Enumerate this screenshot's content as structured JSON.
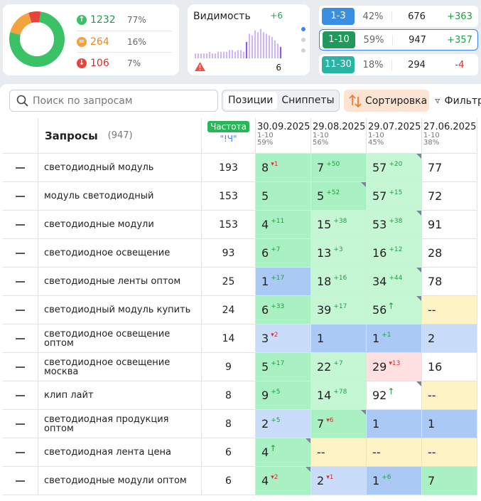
{
  "distribution": {
    "up": {
      "count": "1232",
      "pct": "77%",
      "color": "#3cc266"
    },
    "same": {
      "count": "264",
      "pct": "16%",
      "color": "#f4a23c"
    },
    "down": {
      "count": "106",
      "pct": "7%",
      "color": "#e8443b"
    }
  },
  "visibility": {
    "title": "Видимость",
    "delta": "+6",
    "warn_count": "6",
    "bar_levels": [
      0.15,
      0.15,
      0.15,
      0.15,
      0.15,
      0.2,
      0.15,
      0.15,
      0.2,
      0.2,
      0.2,
      0.2,
      0.25,
      0.25,
      0.2,
      0.25,
      0.25,
      0.2,
      0.5,
      0.75,
      0.7,
      0.85,
      0.8,
      0.9,
      0.8,
      0.75,
      0.7,
      0.65,
      0.55,
      0.45,
      0.35
    ]
  },
  "ranges": [
    {
      "badge": "1-3",
      "badge_color": "#3b8fe0",
      "pct": "42%",
      "count": "676",
      "delta": "+363",
      "delta_color": "#1f9e45"
    },
    {
      "badge": "1-10",
      "badge_color": "#22995a",
      "pct": "59%",
      "count": "947",
      "delta": "+357",
      "delta_color": "#1f9e45"
    },
    {
      "badge": "11-30",
      "badge_color": "#29b5a6",
      "pct": "18%",
      "count": "294",
      "delta": "-4",
      "delta_color": "#d92d2d"
    }
  ],
  "toolbar": {
    "search_placeholder": "Поиск по запросам",
    "tab_positions": "Позиции",
    "tab_snippets": "Сниппеты",
    "sort_label": "Сортировка",
    "filter_label": "Фильтры"
  },
  "table": {
    "queries_title": "Запросы",
    "queries_count": "(947)",
    "freq_badge": "Частота",
    "freq_sub": "\"!Ч\"",
    "dates": [
      {
        "date": "30.09.2025",
        "range": "1-10",
        "pct": "59%"
      },
      {
        "date": "29.08.2025",
        "range": "1-10",
        "pct": "56%"
      },
      {
        "date": "29.07.2025",
        "range": "1-10",
        "pct": "45%"
      },
      {
        "date": "27.06.2025",
        "range": "1-10",
        "pct": "38%"
      }
    ],
    "rows": [
      {
        "q": "светодиодный модуль",
        "f": "193",
        "cells": [
          {
            "v": "8",
            "c": "1",
            "d": "down",
            "bg": "#a9f0c2",
            "m": false
          },
          {
            "v": "7",
            "c": "50",
            "d": "up",
            "bg": "#a9f0c2",
            "m": false
          },
          {
            "v": "57",
            "c": "20",
            "d": "up",
            "bg": "#c6f7d4",
            "m": true
          },
          {
            "v": "77",
            "c": "",
            "d": "",
            "bg": "#ffffff",
            "m": false
          }
        ]
      },
      {
        "q": "модуль светодиодный",
        "f": "153",
        "cells": [
          {
            "v": "5",
            "c": "",
            "d": "",
            "bg": "#a9f0c2",
            "m": false
          },
          {
            "v": "5",
            "c": "52",
            "d": "up",
            "bg": "#a9f0c2",
            "m": true
          },
          {
            "v": "57",
            "c": "15",
            "d": "up",
            "bg": "#c6f7d4",
            "m": false
          },
          {
            "v": "72",
            "c": "",
            "d": "",
            "bg": "#ffffff",
            "m": false
          }
        ]
      },
      {
        "q": "светодиодные модули",
        "f": "153",
        "cells": [
          {
            "v": "4",
            "c": "11",
            "d": "up",
            "bg": "#a9f0c2",
            "m": false
          },
          {
            "v": "15",
            "c": "38",
            "d": "up",
            "bg": "#c6f7d4",
            "m": false
          },
          {
            "v": "53",
            "c": "38",
            "d": "up",
            "bg": "#c6f7d4",
            "m": true
          },
          {
            "v": "91",
            "c": "",
            "d": "",
            "bg": "#ffffff",
            "m": false
          }
        ]
      },
      {
        "q": "светодиодное освещение",
        "f": "93",
        "cells": [
          {
            "v": "6",
            "c": "7",
            "d": "up",
            "bg": "#a9f0c2",
            "m": false
          },
          {
            "v": "13",
            "c": "3",
            "d": "up",
            "bg": "#c6f7d4",
            "m": false
          },
          {
            "v": "16",
            "c": "12",
            "d": "up",
            "bg": "#c6f7d4",
            "m": false
          },
          {
            "v": "28",
            "c": "",
            "d": "",
            "bg": "#ffffff",
            "m": false
          }
        ]
      },
      {
        "q": "светодиодные ленты оптом",
        "f": "25",
        "cells": [
          {
            "v": "1",
            "c": "17",
            "d": "up",
            "bg": "#abc9f5",
            "m": false
          },
          {
            "v": "18",
            "c": "16",
            "d": "up",
            "bg": "#c6f7d4",
            "m": false
          },
          {
            "v": "34",
            "c": "44",
            "d": "up",
            "bg": "#c6f7d4",
            "m": true
          },
          {
            "v": "78",
            "c": "",
            "d": "",
            "bg": "#ffffff",
            "m": false
          }
        ]
      },
      {
        "q": "светодиодный модуль купить",
        "f": "24",
        "cells": [
          {
            "v": "6",
            "c": "33",
            "d": "up",
            "bg": "#a9f0c2",
            "m": false
          },
          {
            "v": "39",
            "c": "17",
            "d": "up",
            "bg": "#c6f7d4",
            "m": false
          },
          {
            "v": "56",
            "c": "↑",
            "d": "new",
            "bg": "#c6f7d4",
            "m": true
          },
          {
            "v": "--",
            "c": "",
            "d": "",
            "bg": "#fdf3c4",
            "m": false
          }
        ]
      },
      {
        "q": "светодиодное освещение оптом",
        "f": "14",
        "cells": [
          {
            "v": "3",
            "c": "2",
            "d": "down",
            "bg": "#c9dcfa",
            "m": false
          },
          {
            "v": "1",
            "c": "",
            "d": "",
            "bg": "#abc9f5",
            "m": false
          },
          {
            "v": "1",
            "c": "1",
            "d": "up",
            "bg": "#abc9f5",
            "m": false
          },
          {
            "v": "2",
            "c": "",
            "d": "",
            "bg": "#c9dcfa",
            "m": false
          }
        ]
      },
      {
        "q": "светодиодное освещение москва",
        "f": "9",
        "cells": [
          {
            "v": "5",
            "c": "17",
            "d": "up",
            "bg": "#a9f0c2",
            "m": false
          },
          {
            "v": "22",
            "c": "7",
            "d": "up",
            "bg": "#c6f7d4",
            "m": false
          },
          {
            "v": "29",
            "c": "13",
            "d": "down",
            "bg": "#fde0df",
            "m": false
          },
          {
            "v": "16",
            "c": "",
            "d": "",
            "bg": "#ffffff",
            "m": false
          }
        ]
      },
      {
        "q": "клип лайт",
        "f": "8",
        "cells": [
          {
            "v": "9",
            "c": "5",
            "d": "up",
            "bg": "#a9f0c2",
            "m": false
          },
          {
            "v": "14",
            "c": "78",
            "d": "up",
            "bg": "#c6f7d4",
            "m": false
          },
          {
            "v": "92",
            "c": "↑",
            "d": "new",
            "bg": "#ffffff",
            "m": true
          },
          {
            "v": "--",
            "c": "",
            "d": "",
            "bg": "#fdf3c4",
            "m": false
          }
        ]
      },
      {
        "q": "светодиодная продукция оптом",
        "f": "8",
        "cells": [
          {
            "v": "2",
            "c": "5",
            "d": "up",
            "bg": "#c9dcfa",
            "m": false
          },
          {
            "v": "7",
            "c": "6",
            "d": "down",
            "bg": "#a9f0c2",
            "m": true
          },
          {
            "v": "1",
            "c": "",
            "d": "",
            "bg": "#abc9f5",
            "m": false
          },
          {
            "v": "1",
            "c": "",
            "d": "",
            "bg": "#abc9f5",
            "m": false
          }
        ]
      },
      {
        "q": "светодиодная лента цена",
        "f": "6",
        "cells": [
          {
            "v": "4",
            "c": "↑",
            "d": "new",
            "bg": "#a9f0c2",
            "m": true
          },
          {
            "v": "--",
            "c": "",
            "d": "",
            "bg": "#fdf3c4",
            "m": false
          },
          {
            "v": "--",
            "c": "",
            "d": "",
            "bg": "#fdf3c4",
            "m": false
          },
          {
            "v": "--",
            "c": "",
            "d": "",
            "bg": "#fdf3c4",
            "m": false
          }
        ]
      },
      {
        "q": "светодиодные модули оптом",
        "f": "6",
        "cells": [
          {
            "v": "4",
            "c": "2",
            "d": "down",
            "bg": "#a9f0c2",
            "m": true
          },
          {
            "v": "2",
            "c": "1",
            "d": "down",
            "bg": "#c9dcfa",
            "m": false
          },
          {
            "v": "1",
            "c": "6",
            "d": "up",
            "bg": "#abc9f5",
            "m": false
          },
          {
            "v": "7",
            "c": "",
            "d": "",
            "bg": "#a9f0c2",
            "m": false
          }
        ]
      }
    ]
  }
}
